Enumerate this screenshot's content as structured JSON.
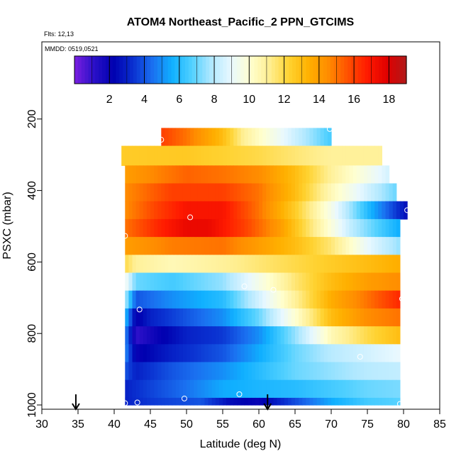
{
  "chart_data": {
    "type": "heatmap",
    "title": "ATOM4 Northeast_Pacific_2 PPN_GTCIMS",
    "flights_label": "Flts: 12,13",
    "dates_label": "MMDD: 0519,0521",
    "xlabel": "Latitude (deg N)",
    "ylabel": "PSXC (mbar)",
    "xlim": [
      30,
      85
    ],
    "ylim": [
      1000,
      0
    ],
    "x_ticks": [
      30,
      35,
      40,
      45,
      50,
      55,
      60,
      65,
      70,
      75,
      80,
      85
    ],
    "x_tick_labels": [
      "30",
      "35",
      "40",
      "45",
      "50",
      "55",
      "60",
      "65",
      "70",
      "75",
      "80",
      "85"
    ],
    "y_ticks": [
      200,
      400,
      600,
      800,
      1000
    ],
    "y_tick_labels": [
      "200",
      "400",
      "600",
      "800",
      "1000"
    ],
    "colorbar": {
      "min": 0,
      "max": 19,
      "ticks": [
        2,
        4,
        6,
        8,
        10,
        12,
        14,
        16,
        18
      ],
      "tick_labels": [
        "2",
        "4",
        "6",
        "8",
        "10",
        "12",
        "14",
        "16",
        "18"
      ],
      "colors": [
        "#7a1fe0",
        "#2a10c8",
        "#0000b0",
        "#0a30d0",
        "#1a70f0",
        "#10b0ff",
        "#50d0ff",
        "#b0e8ff",
        "#e8f8ff",
        "#ffffd0",
        "#ffee90",
        "#ffd230",
        "#ffb000",
        "#ff8c00",
        "#ff5000",
        "#ff1a00",
        "#e00000",
        "#b01a1a"
      ]
    },
    "bands": [
      {
        "p_top": 225,
        "p_bottom": 275,
        "lat_start": 46.5,
        "lat_end": 70.0,
        "values": [
          [
            46.5,
            16.0
          ],
          [
            50,
            15.0
          ],
          [
            55,
            13.0
          ],
          [
            58,
            11.0
          ],
          [
            62,
            9.5
          ],
          [
            66,
            8.0
          ],
          [
            70,
            6.5
          ]
        ]
      },
      {
        "p_top": 275,
        "p_bottom": 330,
        "lat_start": 41.0,
        "lat_end": 77.0,
        "values": [
          [
            41,
            12.5
          ],
          [
            50,
            12.6
          ],
          [
            60,
            12.0
          ],
          [
            65,
            11.5
          ],
          [
            70,
            11.0
          ],
          [
            77,
            11.0
          ]
        ]
      },
      {
        "p_top": 330,
        "p_bottom": 380,
        "lat_start": 41.5,
        "lat_end": 78.0,
        "values": [
          [
            41.5,
            14.0
          ],
          [
            50,
            15.3
          ],
          [
            55,
            15.0
          ],
          [
            60,
            14.5
          ],
          [
            65,
            13.0
          ],
          [
            70,
            11.0
          ],
          [
            75,
            9.5
          ],
          [
            78,
            8.5
          ]
        ]
      },
      {
        "p_top": 380,
        "p_bottom": 430,
        "lat_start": 41.5,
        "lat_end": 79.0,
        "values": [
          [
            41.5,
            14.5
          ],
          [
            48,
            16.0
          ],
          [
            55,
            16.0
          ],
          [
            60,
            15.0
          ],
          [
            65,
            13.0
          ],
          [
            70,
            10.5
          ],
          [
            75,
            8.5
          ],
          [
            79,
            7.0
          ]
        ]
      },
      {
        "p_top": 430,
        "p_bottom": 480,
        "lat_start": 41.5,
        "lat_end": 80.5,
        "values": [
          [
            41.5,
            14.5
          ],
          [
            46,
            16.0
          ],
          [
            50,
            17.0
          ],
          [
            55,
            17.0
          ],
          [
            60,
            15.0
          ],
          [
            65,
            12.5
          ],
          [
            70,
            9.5
          ],
          [
            75,
            6.0
          ],
          [
            80.5,
            2.5
          ]
        ]
      },
      {
        "p_top": 480,
        "p_bottom": 530,
        "lat_start": 41.5,
        "lat_end": 79.5,
        "values": [
          [
            41.5,
            15.0
          ],
          [
            46,
            16.5
          ],
          [
            50,
            17.5
          ],
          [
            53,
            17.5
          ],
          [
            58,
            16.0
          ],
          [
            63,
            14.0
          ],
          [
            68,
            11.0
          ],
          [
            73,
            8.0
          ],
          [
            79.5,
            5.5
          ]
        ]
      },
      {
        "p_top": 530,
        "p_bottom": 580,
        "lat_start": 41.5,
        "lat_end": 79.5,
        "values": [
          [
            41.5,
            14.0
          ],
          [
            48,
            14.8
          ],
          [
            55,
            15.0
          ],
          [
            60,
            14.0
          ],
          [
            65,
            13.0
          ],
          [
            70,
            11.5
          ],
          [
            75,
            9.0
          ],
          [
            79.5,
            7.5
          ]
        ]
      },
      {
        "p_top": 580,
        "p_bottom": 630,
        "lat_start": 41.5,
        "lat_end": 79.5,
        "values": [
          [
            41.5,
            12.0
          ],
          [
            43,
            11.0
          ],
          [
            48,
            10.5
          ],
          [
            55,
            11.0
          ],
          [
            60,
            11.5
          ],
          [
            65,
            12.0
          ],
          [
            70,
            12.5
          ],
          [
            75,
            13.0
          ],
          [
            79.5,
            13.5
          ]
        ]
      },
      {
        "p_top": 630,
        "p_bottom": 680,
        "lat_start": 41.5,
        "lat_end": 79.5,
        "values": [
          [
            41.5,
            9.5
          ],
          [
            43,
            7.0
          ],
          [
            48,
            6.5
          ],
          [
            55,
            7.5
          ],
          [
            60,
            9.5
          ],
          [
            65,
            11.5
          ],
          [
            70,
            13.0
          ],
          [
            75,
            14.0
          ],
          [
            79.5,
            14.5
          ]
        ]
      },
      {
        "p_top": 680,
        "p_bottom": 730,
        "lat_start": 41.5,
        "lat_end": 79.5,
        "values": [
          [
            41.5,
            8.0
          ],
          [
            43,
            4.0
          ],
          [
            48,
            5.0
          ],
          [
            55,
            6.0
          ],
          [
            60,
            8.5
          ],
          [
            65,
            11.0
          ],
          [
            70,
            13.5
          ],
          [
            75,
            15.0
          ],
          [
            79.5,
            16.5
          ]
        ]
      },
      {
        "p_top": 730,
        "p_bottom": 780,
        "lat_start": 41.5,
        "lat_end": 79.5,
        "values": [
          [
            41.5,
            6.0
          ],
          [
            43,
            2.0
          ],
          [
            45,
            3.0
          ],
          [
            50,
            4.0
          ],
          [
            55,
            5.0
          ],
          [
            60,
            7.0
          ],
          [
            65,
            10.0
          ],
          [
            70,
            13.0
          ],
          [
            75,
            14.5
          ],
          [
            79.5,
            15.0
          ]
        ]
      },
      {
        "p_top": 780,
        "p_bottom": 830,
        "lat_start": 41.5,
        "lat_end": 79.5,
        "values": [
          [
            41.5,
            5.0
          ],
          [
            43,
            1.0
          ],
          [
            46,
            2.0
          ],
          [
            50,
            3.0
          ],
          [
            55,
            3.5
          ],
          [
            60,
            5.0
          ],
          [
            65,
            7.5
          ],
          [
            70,
            10.5
          ],
          [
            75,
            12.0
          ],
          [
            79.5,
            13.0
          ]
        ]
      },
      {
        "p_top": 830,
        "p_bottom": 880,
        "lat_start": 41.5,
        "lat_end": 79.5,
        "values": [
          [
            41.5,
            5.0
          ],
          [
            43,
            2.0
          ],
          [
            48,
            3.0
          ],
          [
            55,
            4.0
          ],
          [
            60,
            5.5
          ],
          [
            65,
            7.0
          ],
          [
            70,
            8.0
          ],
          [
            75,
            8.5
          ],
          [
            79.5,
            9.0
          ]
        ]
      },
      {
        "p_top": 880,
        "p_bottom": 930,
        "lat_start": 41.5,
        "lat_end": 79.5,
        "values": [
          [
            41.5,
            4.0
          ],
          [
            43,
            3.0
          ],
          [
            48,
            4.0
          ],
          [
            55,
            5.0
          ],
          [
            60,
            6.0
          ],
          [
            65,
            7.0
          ],
          [
            70,
            7.5
          ],
          [
            75,
            8.0
          ],
          [
            79.5,
            8.2
          ]
        ]
      },
      {
        "p_top": 930,
        "p_bottom": 980,
        "lat_start": 41.5,
        "lat_end": 79.5,
        "values": [
          [
            41.5,
            3.0
          ],
          [
            44,
            3.5
          ],
          [
            50,
            4.5
          ],
          [
            55,
            5.5
          ],
          [
            60,
            5.8
          ],
          [
            65,
            6.0
          ],
          [
            70,
            6.5
          ],
          [
            75,
            7.0
          ],
          [
            79.5,
            7.2
          ]
        ]
      },
      {
        "p_top": 980,
        "p_bottom": 1000,
        "lat_start": 41.5,
        "lat_end": 79.5,
        "values": [
          [
            41.5,
            3.0
          ],
          [
            45,
            3.5
          ],
          [
            52,
            4.0
          ],
          [
            56,
            2.5
          ],
          [
            60,
            2.0
          ],
          [
            64,
            3.5
          ],
          [
            70,
            5.5
          ],
          [
            75,
            6.5
          ],
          [
            79.5,
            6.8
          ]
        ]
      }
    ],
    "points": [
      [
        69.8,
        228
      ],
      [
        46.5,
        258
      ],
      [
        80.5,
        455
      ],
      [
        50.5,
        475
      ],
      [
        41.5,
        527
      ],
      [
        58.0,
        668
      ],
      [
        62.0,
        678
      ],
      [
        79.8,
        703
      ],
      [
        43.5,
        733
      ],
      [
        74.0,
        865
      ],
      [
        57.3,
        970
      ],
      [
        49.7,
        982
      ],
      [
        41.5,
        995
      ],
      [
        43.2,
        993
      ],
      [
        79.5,
        997
      ]
    ],
    "arrows": [
      34.7,
      61.2
    ]
  }
}
